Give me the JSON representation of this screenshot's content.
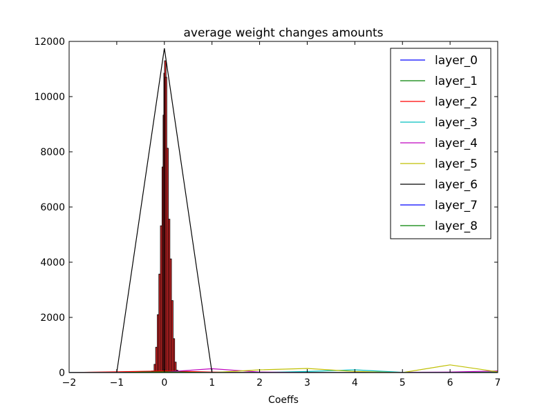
{
  "chart_data": {
    "type": "line",
    "title": "average weight changes amounts",
    "xlabel": "Coeffs",
    "ylabel": "",
    "xlim": [
      -2,
      7
    ],
    "ylim": [
      0,
      12000
    ],
    "xticks": [
      "−2",
      "−1",
      "0",
      "1",
      "2",
      "3",
      "4",
      "5",
      "6",
      "7"
    ],
    "yticks": [
      "0",
      "2000",
      "4000",
      "6000",
      "8000",
      "10000",
      "12000"
    ],
    "legend_position": "top-right",
    "grid": false,
    "histogram": {
      "bin_width": 0.033,
      "bar_color": "#d62728",
      "edge_color": "#000000",
      "bins": [
        {
          "x": -1.05,
          "y": 5
        },
        {
          "x": -0.95,
          "y": 3
        },
        {
          "x": -0.55,
          "y": 4
        },
        {
          "x": -0.3,
          "y": 20
        },
        {
          "x": -0.25,
          "y": 60
        },
        {
          "x": -0.2,
          "y": 300
        },
        {
          "x": -0.167,
          "y": 920
        },
        {
          "x": -0.133,
          "y": 2100
        },
        {
          "x": -0.1,
          "y": 3570
        },
        {
          "x": -0.067,
          "y": 5320
        },
        {
          "x": -0.033,
          "y": 7450
        },
        {
          "x": -0.011,
          "y": 9330
        },
        {
          "x": 0.005,
          "y": 10850
        },
        {
          "x": 0.02,
          "y": 11300
        },
        {
          "x": 0.035,
          "y": 10700
        },
        {
          "x": 0.067,
          "y": 8130
        },
        {
          "x": 0.1,
          "y": 5560
        },
        {
          "x": 0.133,
          "y": 4120
        },
        {
          "x": 0.167,
          "y": 2610
        },
        {
          "x": 0.2,
          "y": 1230
        },
        {
          "x": 0.233,
          "y": 380
        },
        {
          "x": 0.267,
          "y": 90
        },
        {
          "x": 0.3,
          "y": 30
        }
      ]
    },
    "series": [
      {
        "name": "layer_0",
        "color": "#0000ff",
        "x": [
          -2,
          -1,
          0,
          1,
          2,
          3,
          4,
          5,
          6,
          7
        ],
        "y": [
          0,
          0,
          10,
          0,
          0,
          0,
          0,
          0,
          0,
          0
        ]
      },
      {
        "name": "layer_1",
        "color": "#008000",
        "x": [
          -2,
          -1,
          0,
          1,
          2,
          3,
          4,
          5,
          6,
          7
        ],
        "y": [
          0,
          0,
          40,
          10,
          0,
          5,
          0,
          0,
          0,
          20
        ]
      },
      {
        "name": "layer_2",
        "color": "#ff0000",
        "x": [
          -2,
          -1,
          0,
          1,
          2,
          3,
          4,
          5,
          6,
          7
        ],
        "y": [
          0,
          30,
          60,
          20,
          5,
          0,
          0,
          0,
          0,
          0
        ]
      },
      {
        "name": "layer_3",
        "color": "#00bfbf",
        "x": [
          -2,
          -1,
          0,
          1,
          2,
          3,
          4,
          5,
          6,
          7
        ],
        "y": [
          0,
          0,
          20,
          0,
          0,
          40,
          100,
          10,
          0,
          0
        ]
      },
      {
        "name": "layer_4",
        "color": "#bf00bf",
        "x": [
          -2,
          -1,
          0,
          1,
          2,
          3,
          4,
          5,
          6,
          7
        ],
        "y": [
          0,
          0,
          20,
          140,
          20,
          0,
          0,
          10,
          20,
          60
        ]
      },
      {
        "name": "layer_5",
        "color": "#bfbf00",
        "x": [
          -2,
          -1,
          0,
          1,
          2,
          3,
          4,
          5,
          6,
          7
        ],
        "y": [
          0,
          0,
          0,
          0,
          100,
          150,
          40,
          0,
          280,
          30
        ]
      },
      {
        "name": "layer_6",
        "color": "#000000",
        "x": [
          -2,
          -1,
          0,
          1,
          2,
          3,
          4,
          5,
          6,
          7
        ],
        "y": [
          0,
          0,
          11750,
          0,
          0,
          0,
          0,
          0,
          0,
          0
        ]
      },
      {
        "name": "layer_7",
        "color": "#0000ff",
        "x": [
          -2,
          -1,
          0,
          1,
          2,
          3,
          4,
          5,
          6,
          7
        ],
        "y": [
          0,
          0,
          15,
          0,
          0,
          0,
          0,
          0,
          0,
          0
        ]
      },
      {
        "name": "layer_8",
        "color": "#008000",
        "x": [
          -2,
          -1,
          0,
          1,
          2,
          3,
          4,
          5,
          6,
          7
        ],
        "y": [
          0,
          0,
          25,
          0,
          0,
          0,
          0,
          0,
          0,
          0
        ]
      }
    ]
  }
}
